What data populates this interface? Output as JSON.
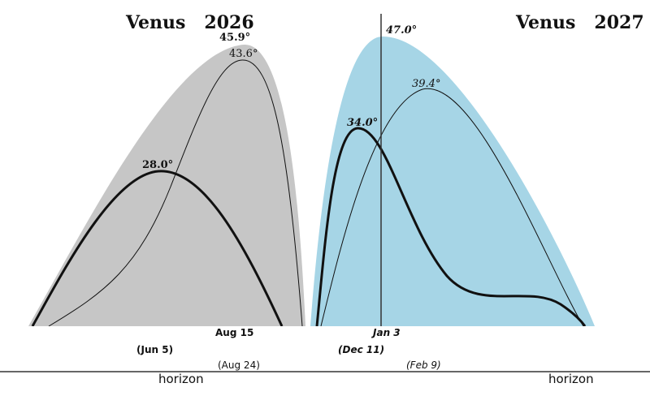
{
  "colors": {
    "fill_2026": "#c6c6c6",
    "fill_2027": "#a6d5e6",
    "curve": "#111111"
  },
  "titles": {
    "left": "Venus   2026",
    "right": "Venus   2027"
  },
  "peaks": {
    "gray_max": "45.9°",
    "gray_thin": "43.6°",
    "gray_thick": "28.0°",
    "blue_max": "47.0°",
    "blue_thin": "39.4°",
    "blue_thick": "34.0°"
  },
  "dates": {
    "aug15": "Aug 15",
    "jun5": "(Jun 5)",
    "aug24": "(Aug 24)",
    "jan3": "Jan 3",
    "dec11": "(Dec 11)",
    "feb9": "(Feb 9)"
  },
  "horizon": {
    "left": "horizon",
    "right": "horizon"
  }
}
